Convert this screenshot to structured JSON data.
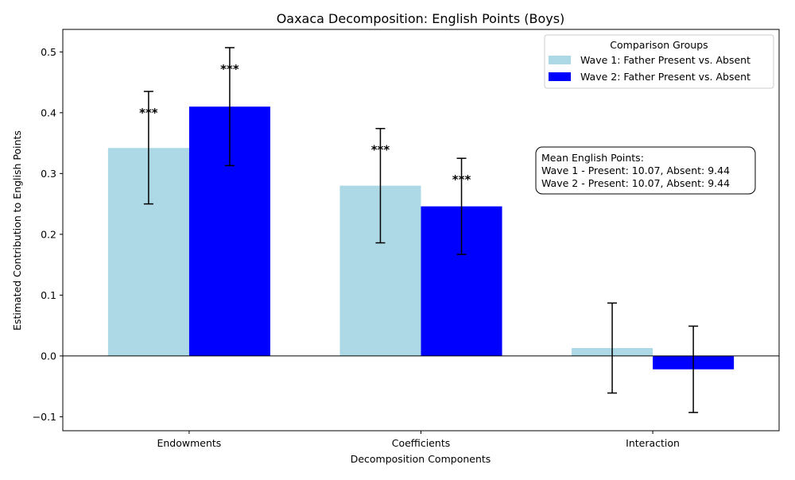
{
  "chart_data": {
    "type": "bar",
    "title": "Oaxaca Decomposition: English Points (Boys)",
    "xlabel": "Decomposition Components",
    "ylabel": "Estimated Contribution to English Points",
    "categories": [
      "Endowments",
      "Coefficients",
      "Interaction"
    ],
    "ylim": [
      -0.123,
      0.537
    ],
    "yticks": [
      -0.1,
      0.0,
      0.1,
      0.2,
      0.3,
      0.4,
      0.5
    ],
    "ytick_labels": [
      "−0.1",
      "0.0",
      "0.1",
      "0.2",
      "0.3",
      "0.4",
      "0.5"
    ],
    "zero_line": true,
    "grid": false,
    "legend": {
      "title": "Comparison Groups",
      "placement": "top-right"
    },
    "series": [
      {
        "name": "Wave 1: Father Present vs. Absent",
        "color": "#add8e6",
        "values": [
          0.342,
          0.28,
          0.013
        ],
        "err_low": [
          0.25,
          0.186,
          -0.061
        ],
        "err_high": [
          0.435,
          0.374,
          0.087
        ],
        "sig": [
          "***",
          "***",
          ""
        ]
      },
      {
        "name": "Wave 2: Father Present vs. Absent",
        "color": "#0000ff",
        "values": [
          0.41,
          0.246,
          -0.022
        ],
        "err_low": [
          0.313,
          0.167,
          -0.093
        ],
        "err_high": [
          0.507,
          0.325,
          0.049
        ],
        "sig": [
          "***",
          "***",
          ""
        ]
      }
    ],
    "annotation": {
      "lines": [
        "Mean English Points:",
        "Wave 1 - Present: 10.07, Absent: 9.44",
        "Wave 2 - Present: 10.07, Absent: 9.44"
      ]
    }
  }
}
